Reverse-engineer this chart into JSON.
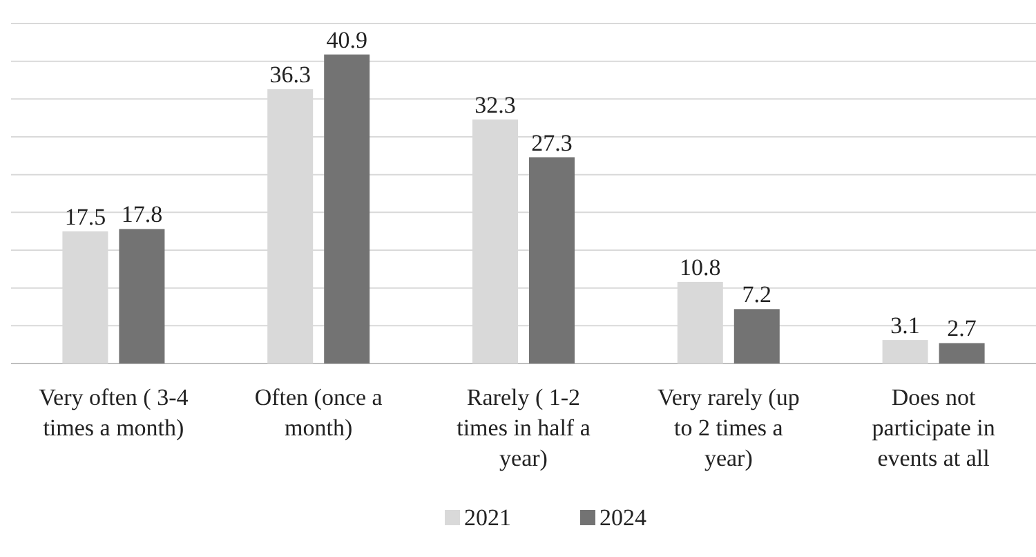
{
  "chart_data": {
    "type": "bar",
    "categories": [
      "Very often ( 3-4 times a month)",
      "Often (once a month)",
      "Rarely ( 1-2 times in half a year)",
      "Very rarely (up to 2 times a year)",
      "Does not participate in events at all"
    ],
    "series": [
      {
        "name": "2021",
        "color": "#d9d9d9",
        "values": [
          17.5,
          36.3,
          32.3,
          10.8,
          3.1
        ]
      },
      {
        "name": "2024",
        "color": "#737373",
        "values": [
          17.8,
          40.9,
          27.3,
          7.2,
          2.7
        ]
      }
    ],
    "ylim": [
      0,
      45
    ],
    "yticks": [
      {
        "value": 0,
        "label": null
      },
      {
        "value": 5,
        "label": null
      },
      {
        "value": 10,
        "label": null
      },
      {
        "value": 15,
        "label": null
      },
      {
        "value": 20,
        "label": null
      },
      {
        "value": 25,
        "label": null
      },
      {
        "value": 30,
        "label": null
      },
      {
        "value": 35,
        "label": null
      },
      {
        "value": 40,
        "label": null
      },
      {
        "value": 45,
        "label": null
      }
    ],
    "tick_labels": "x",
    "grid": "y",
    "data_labels": true,
    "legend": "bottom"
  }
}
